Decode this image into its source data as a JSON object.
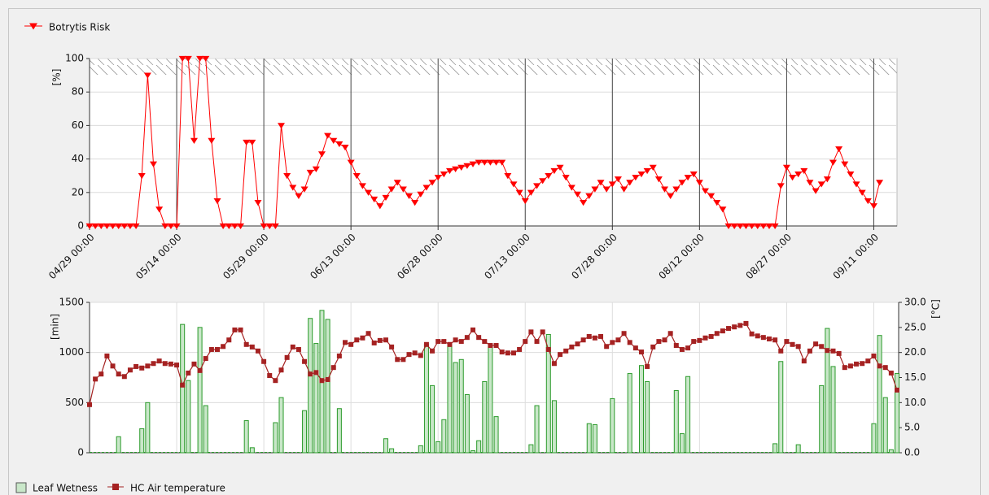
{
  "chart_data": [
    {
      "type": "line",
      "legend": "top-left",
      "ylabel": "[%]",
      "ylim": [
        0,
        100
      ],
      "yticks": [
        0,
        20,
        40,
        60,
        80,
        100
      ],
      "grid": true,
      "categories": [
        "04/29 00:00",
        null,
        null,
        null,
        null,
        null,
        null,
        null,
        null,
        null,
        null,
        null,
        null,
        null,
        null,
        "05/14 00:00",
        null,
        null,
        null,
        null,
        null,
        null,
        null,
        null,
        null,
        null,
        null,
        null,
        null,
        null,
        "05/29 00:00",
        null,
        null,
        null,
        null,
        null,
        null,
        null,
        null,
        null,
        null,
        null,
        null,
        null,
        null,
        "06/13 00:00",
        null,
        null,
        null,
        null,
        null,
        null,
        null,
        null,
        null,
        null,
        null,
        null,
        null,
        null,
        "06/28 00:00",
        null,
        null,
        null,
        null,
        null,
        null,
        null,
        null,
        null,
        null,
        null,
        null,
        null,
        null,
        "07/13 00:00",
        null,
        null,
        null,
        null,
        null,
        null,
        null,
        null,
        null,
        null,
        null,
        null,
        null,
        null,
        "07/28 00:00",
        null,
        null,
        null,
        null,
        null,
        null,
        null,
        null,
        null,
        null,
        null,
        null,
        null,
        null,
        "08/12 00:00",
        null,
        null,
        null,
        null,
        null,
        null,
        null,
        null,
        null,
        null,
        null,
        null,
        null,
        null,
        "08/27 00:00",
        null,
        null,
        null,
        null,
        null,
        null,
        null,
        null,
        null,
        null,
        null,
        null,
        null,
        null,
        "09/11 00:00",
        null,
        null,
        null,
        null
      ],
      "series": [
        {
          "name": "Botrytis Risk",
          "color": "#ff0000",
          "values": [
            0,
            0,
            0,
            0,
            0,
            0,
            0,
            0,
            0,
            30,
            90,
            37,
            10,
            0,
            0,
            0,
            100,
            100,
            51,
            100,
            100,
            51,
            15,
            0,
            0,
            0,
            0,
            50,
            50,
            14,
            0,
            0,
            0,
            60,
            30,
            23,
            18,
            22,
            32,
            34,
            43,
            54,
            51,
            49,
            47,
            38,
            30,
            24,
            20,
            16,
            12,
            17,
            22,
            26,
            22,
            18,
            14,
            19,
            23,
            26,
            29,
            31,
            33,
            34,
            35,
            36,
            37,
            38,
            38,
            38,
            38,
            38,
            30,
            25,
            20,
            15,
            20,
            24,
            27,
            30,
            33,
            35,
            29,
            23,
            19,
            14,
            18,
            22,
            26,
            22,
            25,
            28,
            22,
            26,
            29,
            31,
            33,
            35,
            28,
            22,
            18,
            22,
            26,
            29,
            31,
            26,
            21,
            18,
            14,
            10,
            0,
            0,
            0,
            0,
            0,
            0,
            0,
            0,
            0,
            24,
            35,
            29,
            31,
            33,
            26,
            21,
            25,
            28,
            38,
            46,
            37,
            31,
            25,
            20,
            15,
            12,
            26,
            null,
            null,
            null
          ]
        }
      ]
    },
    {
      "type": "bar",
      "legend": "bottom-left",
      "ylabel": "[min]",
      "y2label": "[°C]",
      "ylim": [
        0,
        1500
      ],
      "yticks": [
        0,
        500,
        1000,
        1500
      ],
      "y2lim": [
        0,
        30
      ],
      "y2ticks": [
        {
          "value": 0,
          "label": "0.0"
        },
        {
          "value": 5,
          "label": "5.0"
        },
        {
          "value": 10,
          "label": "10.0"
        },
        {
          "value": 15,
          "label": "15.0"
        },
        {
          "value": 20,
          "label": "20.0"
        },
        {
          "value": 25,
          "label": "25.0"
        },
        {
          "value": 30,
          "label": "30.0"
        }
      ],
      "grid": true,
      "series": [
        {
          "name": "Leaf Wetness",
          "type": "bar",
          "color": "#2a9a2a",
          "fill": "#c9e7c9",
          "values": [
            0,
            0,
            0,
            0,
            0,
            160,
            0,
            0,
            0,
            240,
            500,
            0,
            0,
            0,
            0,
            0,
            1280,
            720,
            0,
            1250,
            470,
            0,
            0,
            0,
            0,
            0,
            0,
            320,
            50,
            0,
            0,
            0,
            300,
            550,
            0,
            0,
            0,
            420,
            1340,
            1090,
            1420,
            1330,
            0,
            440,
            0,
            0,
            0,
            0,
            0,
            0,
            0,
            140,
            40,
            0,
            0,
            0,
            0,
            70,
            1080,
            670,
            110,
            330,
            1060,
            900,
            930,
            580,
            20,
            120,
            710,
            1060,
            360,
            0,
            0,
            0,
            0,
            0,
            80,
            470,
            0,
            1180,
            520,
            0,
            0,
            0,
            0,
            0,
            290,
            280,
            0,
            0,
            540,
            0,
            0,
            790,
            0,
            870,
            710,
            0,
            0,
            0,
            0,
            620,
            190,
            760,
            0,
            0,
            0,
            0,
            0,
            0,
            0,
            0,
            0,
            0,
            0,
            0,
            0,
            0,
            90,
            910,
            0,
            0,
            80,
            0,
            0,
            0,
            670,
            1240,
            860,
            0,
            0,
            0,
            0,
            0,
            0,
            290,
            1170,
            550,
            30,
            790
          ]
        },
        {
          "name": "HC Air temperature",
          "type": "line",
          "axis": "y2",
          "color": "#a52222",
          "values": [
            9.6,
            14.7,
            15.7,
            19.3,
            17.3,
            15.7,
            15.2,
            16.5,
            17.2,
            16.9,
            17.3,
            17.8,
            18.3,
            17.8,
            17.7,
            17.5,
            13.5,
            15.9,
            17.7,
            16.4,
            18.8,
            20.6,
            20.6,
            21.2,
            22.5,
            24.5,
            24.5,
            21.6,
            21.1,
            20.3,
            18.2,
            15.4,
            14.4,
            16.5,
            19.0,
            21.1,
            20.6,
            18.2,
            15.7,
            16.0,
            14.4,
            14.6,
            17.0,
            19.3,
            22.0,
            21.6,
            22.5,
            22.9,
            23.8,
            21.9,
            22.4,
            22.5,
            21.1,
            18.6,
            18.6,
            19.6,
            19.9,
            19.4,
            21.6,
            20.3,
            22.2,
            22.2,
            21.6,
            22.5,
            22.2,
            23.0,
            24.5,
            23.0,
            22.2,
            21.4,
            21.4,
            20.1,
            19.9,
            19.9,
            20.6,
            22.2,
            24.1,
            22.2,
            24.1,
            20.6,
            17.8,
            19.6,
            20.3,
            21.1,
            21.7,
            22.5,
            23.2,
            22.9,
            23.2,
            21.2,
            22.0,
            22.5,
            23.8,
            22.0,
            20.9,
            20.1,
            17.2,
            21.1,
            22.2,
            22.5,
            23.8,
            21.4,
            20.6,
            20.9,
            22.2,
            22.4,
            22.9,
            23.2,
            23.8,
            24.3,
            24.8,
            25.1,
            25.4,
            25.8,
            23.7,
            23.3,
            23.0,
            22.7,
            22.5,
            20.3,
            22.2,
            21.6,
            21.2,
            18.3,
            20.3,
            21.7,
            21.2,
            20.4,
            20.3,
            19.8,
            17.0,
            17.3,
            17.7,
            17.8,
            18.3,
            19.3,
            17.3,
            17.0,
            15.9,
            12.5
          ]
        }
      ]
    }
  ]
}
